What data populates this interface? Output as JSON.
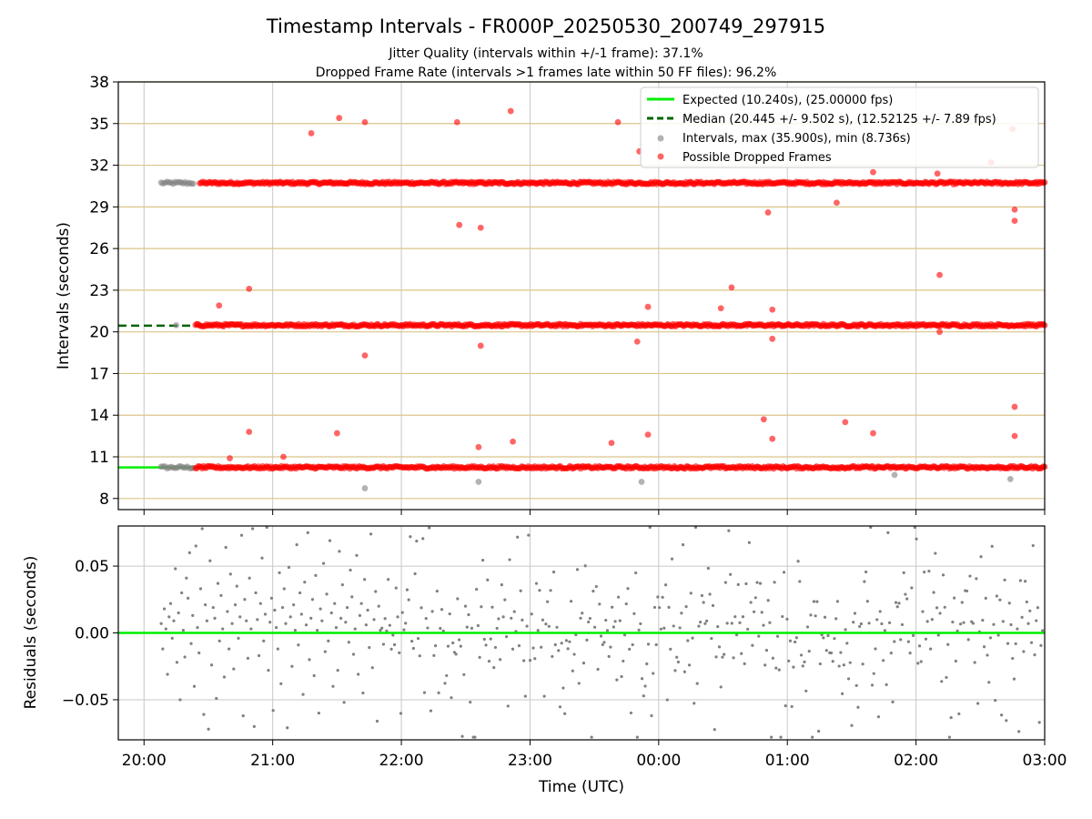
{
  "chart_data": [
    {
      "type": "scatter",
      "title": "Timestamp Intervals - FR000P_20250530_200749_297915",
      "subtitle_1": "Jitter Quality (intervals within +/-1 frame): 37.1%",
      "subtitle_2": "Dropped Frame Rate (intervals >1 frames late within 50 FF files): 96.2%",
      "xlabel": "",
      "ylabel": "Intervals (seconds)",
      "x_ticks": [
        "20:00",
        "21:00",
        "22:00",
        "23:00",
        "00:00",
        "01:00",
        "02:00",
        "03:00"
      ],
      "y_ticks": [
        "8",
        "11",
        "14",
        "17",
        "20",
        "23",
        "26",
        "29",
        "32",
        "35",
        "38"
      ],
      "xlim": [
        "19:48",
        "03:00"
      ],
      "ylim": [
        7.2,
        38
      ],
      "legend_position": "top-right",
      "reference_lines": [
        {
          "name": "Expected (10.240s), (25.00000 fps)",
          "y": 10.24,
          "color": "#00ee00",
          "style": "solid"
        },
        {
          "name": "Median (20.445 +/- 9.502 s), (12.52125 +/- 7.89 fps)",
          "y": 20.445,
          "color": "#006400",
          "style": "dashed"
        }
      ],
      "series": [
        {
          "name": "Intervals, max (35.900s), min (8.736s)",
          "color": "#808080",
          "bands": [
            {
              "x_start": "20:08",
              "x_end": "20:23",
              "y": 30.72
            },
            {
              "x_start": "20:08",
              "x_end": "20:23",
              "y": 10.24
            }
          ],
          "outliers": [
            {
              "x": "20:15",
              "y": 20.48
            },
            {
              "x": "21:43",
              "y": 8.736
            },
            {
              "x": "22:36",
              "y": 9.2
            },
            {
              "x": "23:52",
              "y": 9.2
            },
            {
              "x": "01:50",
              "y": 9.7
            },
            {
              "x": "02:44",
              "y": 9.4
            }
          ]
        },
        {
          "name": "Possible Dropped Frames",
          "color": "#ff0000",
          "bands": [
            {
              "x_start": "20:26",
              "x_end": "03:00",
              "y": 30.72
            },
            {
              "x_start": "20:24",
              "x_end": "03:00",
              "y": 20.48
            },
            {
              "x_start": "20:24",
              "x_end": "03:00",
              "y": 10.24
            }
          ],
          "outliers": [
            {
              "x": "21:18",
              "y": 34.3
            },
            {
              "x": "21:31",
              "y": 35.4
            },
            {
              "x": "21:43",
              "y": 35.1
            },
            {
              "x": "22:26",
              "y": 35.1
            },
            {
              "x": "22:51",
              "y": 35.9
            },
            {
              "x": "23:41",
              "y": 35.1
            },
            {
              "x": "23:51",
              "y": 33.0
            },
            {
              "x": "02:35",
              "y": 32.2
            },
            {
              "x": "02:45",
              "y": 34.6
            },
            {
              "x": "01:40",
              "y": 31.5
            },
            {
              "x": "02:10",
              "y": 31.4
            },
            {
              "x": "01:23",
              "y": 29.3
            },
            {
              "x": "00:51",
              "y": 28.6
            },
            {
              "x": "22:27",
              "y": 27.7
            },
            {
              "x": "22:37",
              "y": 27.5
            },
            {
              "x": "02:46",
              "y": 28.8
            },
            {
              "x": "02:46",
              "y": 28.0
            },
            {
              "x": "02:11",
              "y": 24.1
            },
            {
              "x": "20:35",
              "y": 21.9
            },
            {
              "x": "20:49",
              "y": 23.1
            },
            {
              "x": "23:55",
              "y": 21.8
            },
            {
              "x": "00:29",
              "y": 21.7
            },
            {
              "x": "00:34",
              "y": 23.2
            },
            {
              "x": "00:53",
              "y": 21.6
            },
            {
              "x": "21:43",
              "y": 18.3
            },
            {
              "x": "22:37",
              "y": 19.0
            },
            {
              "x": "23:50",
              "y": 19.3
            },
            {
              "x": "00:53",
              "y": 19.5
            },
            {
              "x": "02:11",
              "y": 20.0
            },
            {
              "x": "20:49",
              "y": 12.8
            },
            {
              "x": "21:30",
              "y": 12.7
            },
            {
              "x": "22:36",
              "y": 11.7
            },
            {
              "x": "22:52",
              "y": 12.1
            },
            {
              "x": "23:38",
              "y": 12.0
            },
            {
              "x": "23:55",
              "y": 12.6
            },
            {
              "x": "00:49",
              "y": 13.7
            },
            {
              "x": "00:53",
              "y": 12.3
            },
            {
              "x": "01:27",
              "y": 13.5
            },
            {
              "x": "01:40",
              "y": 12.7
            },
            {
              "x": "02:46",
              "y": 14.6
            },
            {
              "x": "02:46",
              "y": 12.5
            },
            {
              "x": "20:40",
              "y": 10.9
            },
            {
              "x": "21:05",
              "y": 11.0
            }
          ]
        }
      ]
    },
    {
      "type": "scatter",
      "xlabel": "Time (UTC)",
      "ylabel": "Residuals (seconds)",
      "x_ticks": [
        "20:00",
        "21:00",
        "22:00",
        "23:00",
        "00:00",
        "01:00",
        "02:00",
        "03:00"
      ],
      "y_ticks": [
        "−0.05",
        "0.00",
        "0.05"
      ],
      "xlim": [
        "19:48",
        "03:00"
      ],
      "ylim": [
        -0.08,
        0.08
      ],
      "grid": true,
      "reference_line": {
        "y": 0.0,
        "color": "#00ee00"
      },
      "series": [
        {
          "color": "#808080",
          "x_start": "20:08",
          "x_end": "02:59",
          "values": [
            0.007,
            -0.012,
            0.018,
            0.003,
            -0.031,
            0.012,
            0.022,
            -0.004,
            0.009,
            0.048,
            -0.022,
            0.015,
            -0.05,
            0.03,
            0.002,
            -0.018,
            0.041,
            0.026,
            0.06,
            -0.008,
            0.013,
            -0.04,
            0.065,
            0.004,
            -0.015,
            0.033,
            0.078,
            -0.061,
            0.021,
            0.009,
            -0.072,
            0.054,
            -0.024,
            0.019,
            0.011,
            -0.049,
            0.037,
            -0.006,
            0.028,
            0.003,
            -0.033,
            0.064,
            0.016,
            -0.012,
            0.044,
            0.007,
            -0.027,
            0.021,
            0.035,
            -0.004,
            0.012,
            0.073,
            -0.062,
            0.025,
            0.009,
            -0.019,
            0.041,
            0.003,
            0.078,
            -0.07,
            0.03,
            0.01,
            -0.017,
            0.022,
            0.056,
            -0.006,
            0.014,
            0.079,
            -0.028,
            0.008,
            0.026,
            -0.058,
            0.017,
            0.004,
            -0.012,
            0.045,
            -0.038,
            0.019,
            0.033,
            0.007,
            -0.071,
            0.049,
            0.012,
            -0.025,
            0.021,
            0.002,
            0.066,
            -0.009,
            0.03,
            0.014,
            -0.046,
            0.038,
            0.006,
            0.075,
            -0.02,
            0.011,
            0.025,
            -0.032,
            0.043,
            0.002,
            -0.06,
            0.018,
            0.009,
            0.052,
            -0.014,
            0.029,
            -0.006,
            0.069,
            0.015,
            -0.04,
            0.022,
            0.004,
            -0.028,
            0.061,
            0.011,
            0.036,
            -0.052,
            0.008,
            0.019,
            -0.007,
            0.047,
            0.027,
            -0.016,
            0.003,
            0.058,
            -0.031,
            0.013,
            0.022,
            -0.045,
            0.04,
            0.006,
            0.017,
            -0.011,
            0.074,
            -0.026,
            0.01,
            0.031,
            -0.066,
            0.02,
            0.002
          ]
        }
      ]
    }
  ]
}
